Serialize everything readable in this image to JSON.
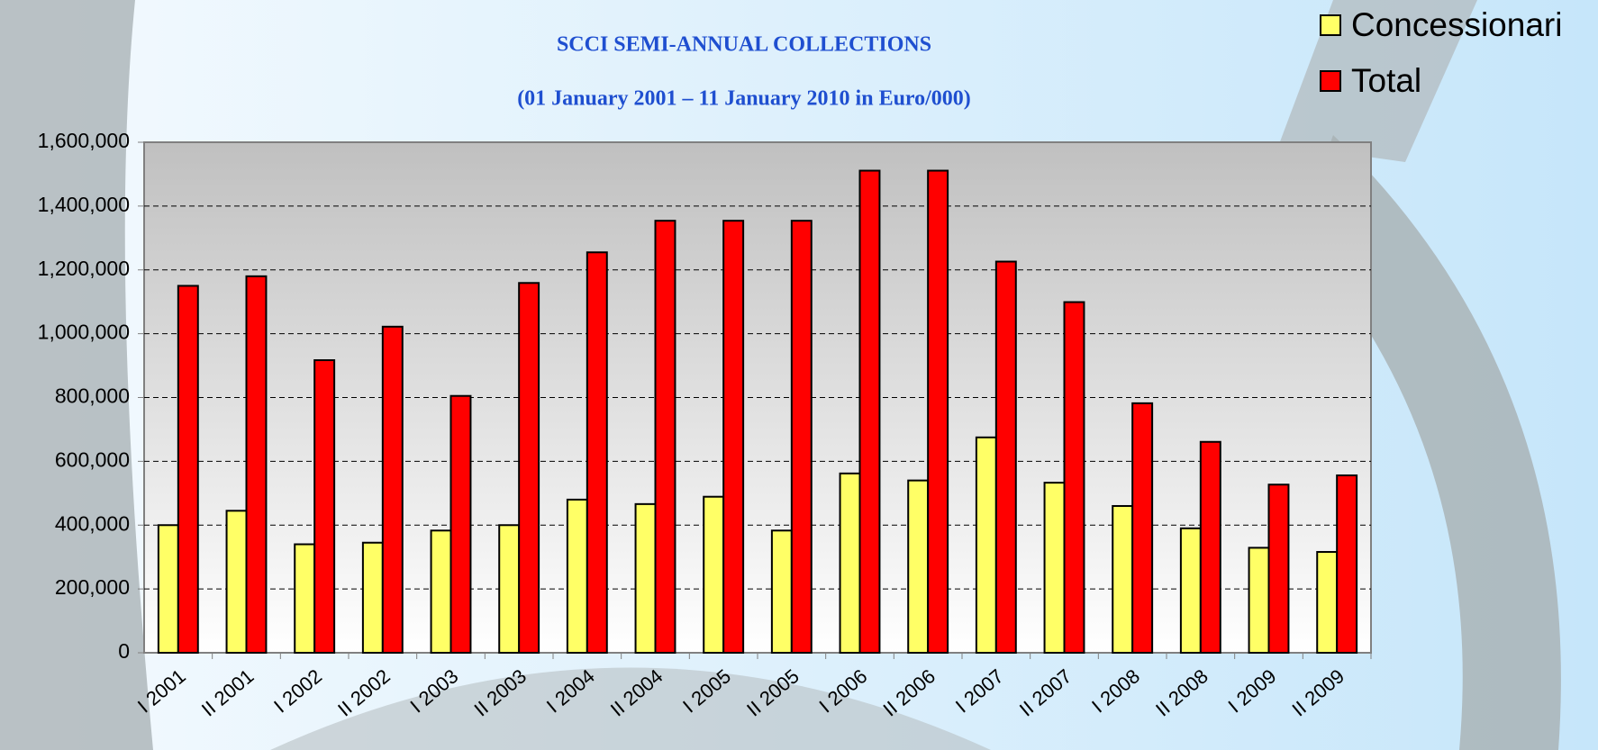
{
  "chart_data": {
    "type": "bar",
    "title": "SCCI SEMI-ANNUAL COLLECTIONS",
    "subtitle": "(01 January 2001 – 11 January 2010 in Euro/000)",
    "categories": [
      "I 2001",
      "II 2001",
      "I 2002",
      "II 2002",
      "I 2003",
      "II 2003",
      "I 2004",
      "II 2004",
      "I 2005",
      "II 2005",
      "I 2006",
      "II 2006",
      "I 2007",
      "II 2007",
      "I 2008",
      "II 2008",
      "I 2009",
      "II 2009"
    ],
    "series": [
      {
        "name": "Concessionari",
        "color": "#ffff66",
        "values": [
          400000,
          445000,
          340000,
          345000,
          383000,
          400000,
          480000,
          466000,
          489000,
          383000,
          562000,
          540000,
          675000,
          533000,
          460000,
          390000,
          329000,
          316000
        ]
      },
      {
        "name": "Total",
        "color": "#ff0000",
        "values": [
          1150000,
          1180000,
          917000,
          1022000,
          805000,
          1159000,
          1255000,
          1354000,
          1354000,
          1354000,
          1511000,
          1511000,
          1226000,
          1099000,
          782000,
          661000,
          527000,
          556000
        ]
      }
    ],
    "ylim": [
      0,
      1600000
    ],
    "yticks": [
      0,
      {
        "value": 200000,
        "label": "200,000"
      },
      {
        "value": 400000,
        "label": "400,000"
      },
      {
        "value": 600000,
        "label": "600,000"
      },
      {
        "value": 800000,
        "label": "800,000"
      },
      {
        "value": 1000000,
        "label": "1,000,000"
      },
      {
        "value": 1200000,
        "label": "1,200,000"
      },
      {
        "value": 1400000,
        "label": "1,400,000"
      },
      {
        "value": 1600000,
        "label": "1,600,000"
      }
    ],
    "grid": true,
    "legend": "top-right"
  }
}
